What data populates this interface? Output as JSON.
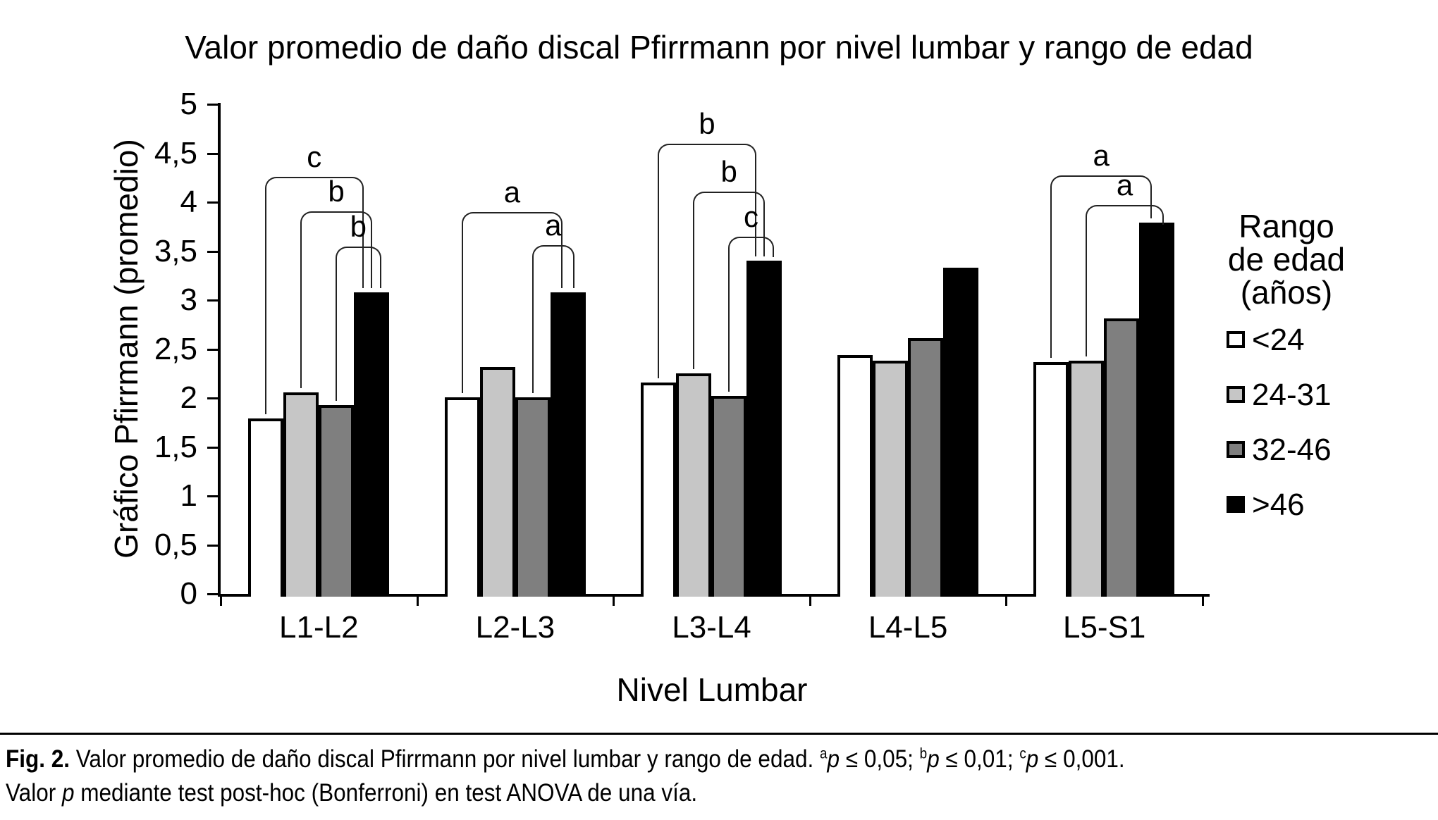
{
  "figure": {
    "caption_lines": [
      [
        {
          "t": "Fig. 2.",
          "s": "b"
        },
        {
          "t": " Valor promedio de daño discal Pfirrmann por nivel lumbar y rango de edad. ",
          "s": ""
        },
        {
          "t": "a",
          "s": "sup"
        },
        {
          "t": "p",
          "s": "i"
        },
        {
          "t": " ≤ 0,05; ",
          "s": ""
        },
        {
          "t": "b",
          "s": "sup"
        },
        {
          "t": "p",
          "s": "i"
        },
        {
          "t": " ≤ 0,01; ",
          "s": ""
        },
        {
          "t": "c",
          "s": "sup"
        },
        {
          "t": "p",
          "s": "i"
        },
        {
          "t": " ≤ 0,001.",
          "s": ""
        }
      ],
      [
        {
          "t": "Valor ",
          "s": ""
        },
        {
          "t": "p",
          "s": "i"
        },
        {
          "t": " mediante test post-hoc (Bonferroni) en test ANOVA de una vía.",
          "s": ""
        }
      ]
    ]
  },
  "chart_data": {
    "type": "bar",
    "title": "Valor promedio de daño discal Pfirrmann por nivel lumbar y rango de edad",
    "xlabel": "Nivel Lumbar",
    "ylabel": "Gráfico Pfirrmann (promedio)",
    "ylim": [
      0,
      5
    ],
    "ytick_step": 0.5,
    "ytick_labels": [
      "0",
      "0,5",
      "1",
      "1,5",
      "2",
      "2,5",
      "3",
      "3,5",
      "4",
      "4,5",
      "5"
    ],
    "grid": false,
    "categories": [
      "L1-L2",
      "L2-L3",
      "L3-L4",
      "L4-L5",
      "L5-S1"
    ],
    "series": [
      {
        "name": "<24",
        "color": "#ffffff",
        "values": [
          1.79,
          2.01,
          2.16,
          2.44,
          2.37
        ]
      },
      {
        "name": "24-31",
        "color": "#c6c6c6",
        "values": [
          2.06,
          2.32,
          2.25,
          2.38,
          2.38
        ]
      },
      {
        "name": "32-46",
        "color": "#7f7f7f",
        "values": [
          1.93,
          2.01,
          2.02,
          2.61,
          2.81
        ]
      },
      {
        "name": ">46",
        "color": "#000000",
        "values": [
          3.08,
          3.08,
          3.4,
          3.33,
          3.79
        ]
      }
    ],
    "legend_position": "right",
    "legend_title_lines": [
      "Rango",
      "de edad",
      "(años)"
    ],
    "significance_brackets": [
      {
        "group": "L1-L2",
        "from": "<24",
        "to": ">46",
        "label": "c",
        "top": 4.26
      },
      {
        "group": "L1-L2",
        "from": "24-31",
        "to": ">46",
        "label": "b",
        "top": 3.91
      },
      {
        "group": "L1-L2",
        "from": "32-46",
        "to": ">46",
        "label": "b",
        "top": 3.55
      },
      {
        "group": "L2-L3",
        "from": "<24",
        "to": ">46",
        "label": "a",
        "top": 3.9
      },
      {
        "group": "L2-L3",
        "from": "32-46",
        "to": ">46",
        "label": "a",
        "top": 3.56
      },
      {
        "group": "L3-L4",
        "from": "<24",
        "to": ">46",
        "label": "b",
        "top": 4.6
      },
      {
        "group": "L3-L4",
        "from": "24-31",
        "to": ">46",
        "label": "b",
        "top": 4.11
      },
      {
        "group": "L3-L4",
        "from": "32-46",
        "to": ">46",
        "label": "c",
        "top": 3.65
      },
      {
        "group": "L5-S1",
        "from": "<24",
        "to": ">46",
        "label": "a",
        "top": 4.27
      },
      {
        "group": "L5-S1",
        "from": "24-31",
        "to": ">46",
        "label": "a",
        "top": 3.97
      }
    ],
    "axis_color": "#000000",
    "bracket_color": "#222222"
  }
}
